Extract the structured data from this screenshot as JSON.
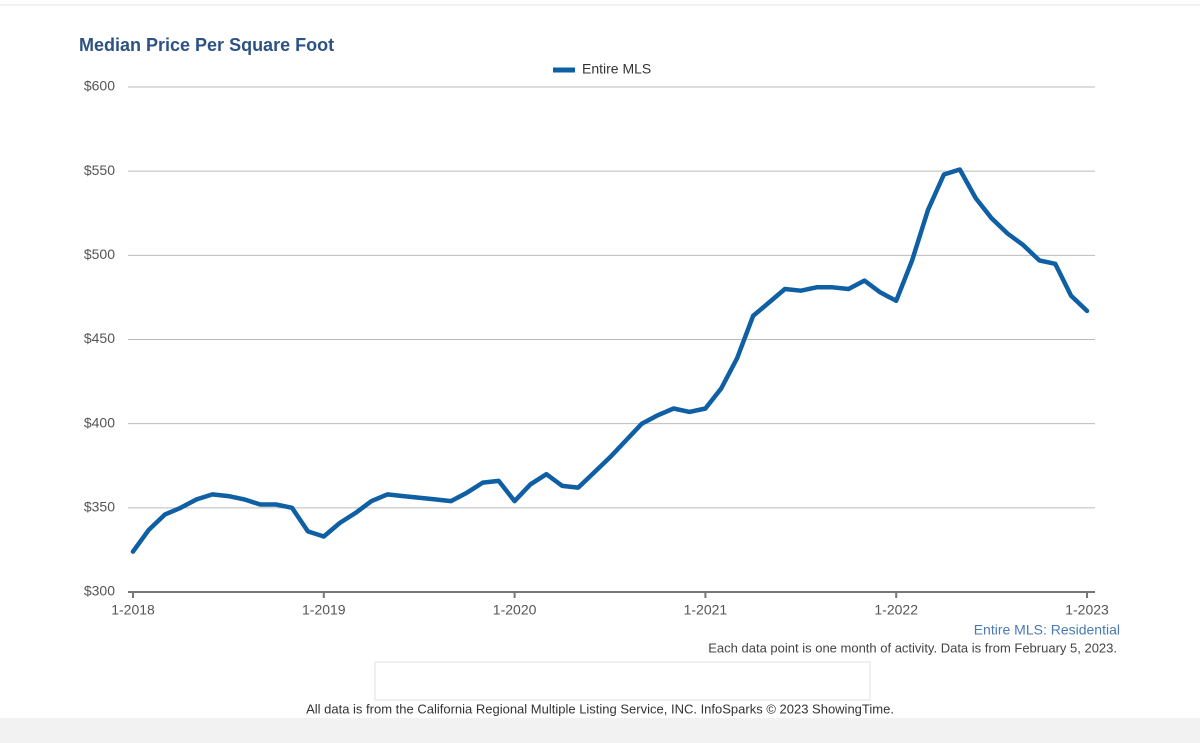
{
  "chart_data": {
    "type": "line",
    "title": "Median Price Per Square Foot",
    "categories": [
      "1-2018",
      null,
      null,
      null,
      null,
      null,
      null,
      null,
      null,
      null,
      null,
      null,
      "1-2019",
      null,
      null,
      null,
      null,
      null,
      null,
      null,
      null,
      null,
      null,
      null,
      "1-2020",
      null,
      null,
      null,
      null,
      null,
      null,
      null,
      null,
      null,
      null,
      null,
      "1-2021",
      null,
      null,
      null,
      null,
      null,
      null,
      null,
      null,
      null,
      null,
      null,
      "1-2022",
      null,
      null,
      null,
      null,
      null,
      null,
      null,
      null,
      null,
      null,
      null,
      "1-2023"
    ],
    "series": [
      {
        "name": "Entire MLS",
        "color": "#0e5fa3",
        "values": [
          324,
          337,
          346,
          350,
          355,
          358,
          357,
          355,
          352,
          352,
          350,
          336,
          333,
          341,
          347,
          354,
          358,
          357,
          356,
          355,
          354,
          359,
          365,
          366,
          354,
          364,
          370,
          363,
          362,
          371,
          380,
          390,
          400,
          405,
          409,
          407,
          409,
          421,
          439,
          464,
          472,
          480,
          479,
          481,
          481,
          480,
          485,
          478,
          473,
          497,
          527,
          548,
          551,
          534,
          522,
          513,
          506,
          497,
          495,
          476,
          467
        ]
      }
    ],
    "ylim": [
      300,
      600
    ],
    "yticks": [
      {
        "value": 300,
        "label": "$300"
      },
      {
        "value": 350,
        "label": "$350"
      },
      {
        "value": 400,
        "label": "$400"
      },
      {
        "value": 450,
        "label": "$450"
      },
      {
        "value": 500,
        "label": "$500"
      },
      {
        "value": 550,
        "label": "$550"
      },
      {
        "value": 600,
        "label": "$600"
      }
    ],
    "grid": true,
    "legend": "top",
    "source_label": "Entire MLS: Residential",
    "note": "Each data point is one month of activity. Data is from February 5, 2023.",
    "footer": "All data is from the California Regional Multiple Listing Service, INC. InfoSparks © 2023 ShowingTime."
  }
}
